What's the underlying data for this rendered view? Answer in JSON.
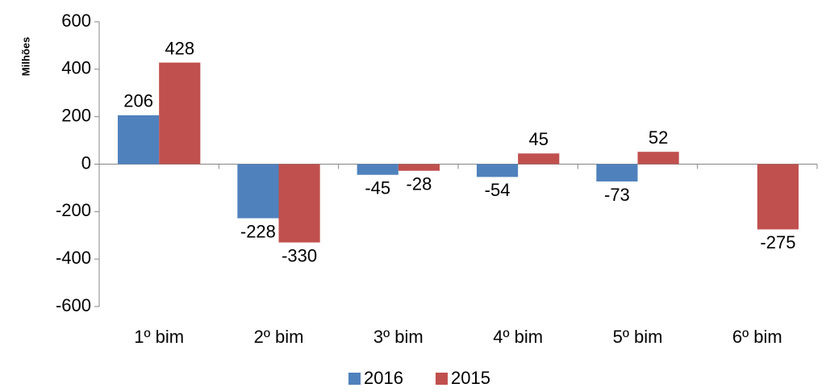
{
  "chart_data": {
    "type": "bar",
    "y_label": "Milhões",
    "categories": [
      "1º bim",
      "2º bim",
      "3º bim",
      "4º bim",
      "5º bim",
      "6º bim"
    ],
    "series": [
      {
        "name": "2016",
        "color": "#4f81bd",
        "values": [
          206,
          -228,
          -45,
          -54,
          -73,
          null
        ]
      },
      {
        "name": "2015",
        "color": "#c0504d",
        "values": [
          428,
          -330,
          -28,
          45,
          52,
          -275
        ]
      }
    ],
    "ylim": [
      -600,
      600
    ],
    "yticks": [
      -600,
      -400,
      -200,
      0,
      200,
      400,
      600
    ],
    "legend": "bottom"
  }
}
